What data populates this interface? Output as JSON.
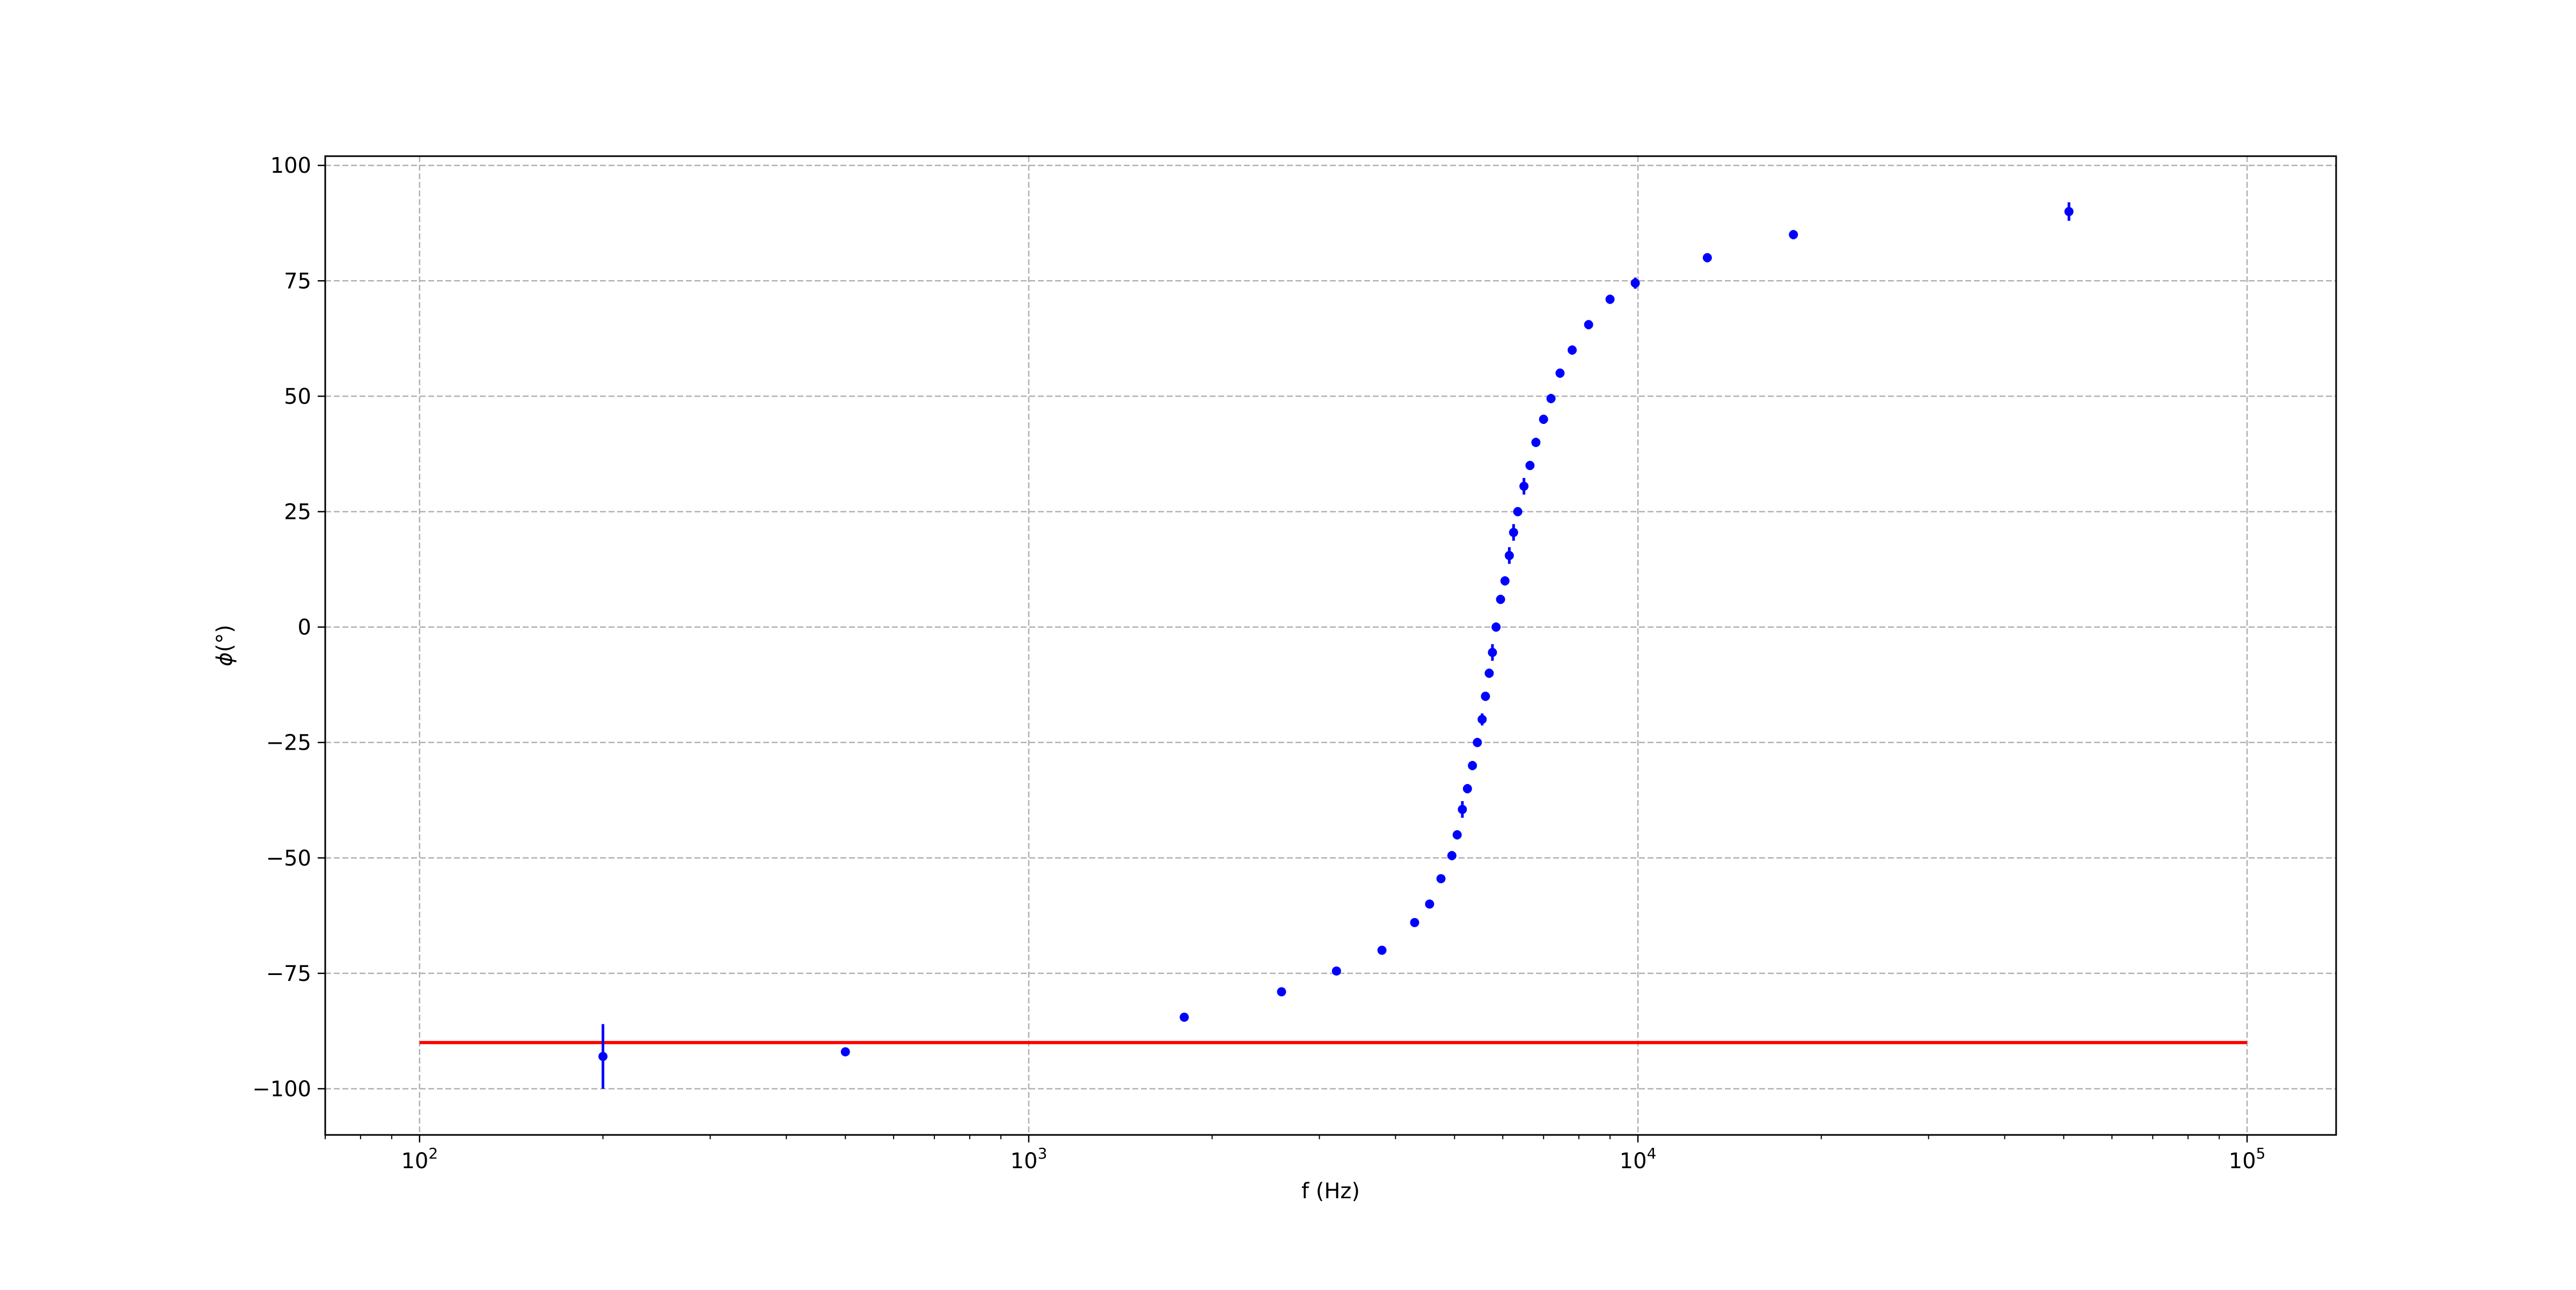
{
  "chart_data": {
    "type": "scatter",
    "title": "",
    "xlabel": "f (Hz)",
    "ylabel_base": "ϕ",
    "ylabel_suffix": "(°)",
    "xscale": "log",
    "xlim": [
      70,
      140000
    ],
    "ylim": [
      -110,
      102
    ],
    "x_ticks": [
      {
        "value": 100,
        "base": "10",
        "exp": "2"
      },
      {
        "value": 1000,
        "base": "10",
        "exp": "3"
      },
      {
        "value": 10000,
        "base": "10",
        "exp": "4"
      },
      {
        "value": 100000,
        "base": "10",
        "exp": "5"
      }
    ],
    "y_ticks": [
      {
        "value": 100,
        "label": "100"
      },
      {
        "value": 75,
        "label": "75"
      },
      {
        "value": 50,
        "label": "50"
      },
      {
        "value": 25,
        "label": "25"
      },
      {
        "value": 0,
        "label": "0"
      },
      {
        "value": -25,
        "label": "−25"
      },
      {
        "value": -50,
        "label": "−50"
      },
      {
        "value": -75,
        "label": "−75"
      },
      {
        "value": -100,
        "label": "−100"
      }
    ],
    "grid": true,
    "series": [
      {
        "kind": "errorbar",
        "color": "#0000ff",
        "points": [
          {
            "x": 200,
            "y": -93,
            "err": 7
          },
          {
            "x": 500,
            "y": -92,
            "err": 0.8
          },
          {
            "x": 1800,
            "y": -84.5,
            "err": 0.8
          },
          {
            "x": 2600,
            "y": -79,
            "err": 0.8
          },
          {
            "x": 3200,
            "y": -74.5,
            "err": 0.8
          },
          {
            "x": 3800,
            "y": -70,
            "err": 0.8
          },
          {
            "x": 4300,
            "y": -64,
            "err": 0.8
          },
          {
            "x": 4550,
            "y": -60,
            "err": 0.8
          },
          {
            "x": 4750,
            "y": -54.5,
            "err": 0.8
          },
          {
            "x": 4950,
            "y": -49.5,
            "err": 1
          },
          {
            "x": 5050,
            "y": -45,
            "err": 1
          },
          {
            "x": 5150,
            "y": -39.5,
            "err": 1.8
          },
          {
            "x": 5250,
            "y": -35,
            "err": 1
          },
          {
            "x": 5350,
            "y": -30,
            "err": 1
          },
          {
            "x": 5450,
            "y": -25,
            "err": 1
          },
          {
            "x": 5550,
            "y": -20,
            "err": 1.3
          },
          {
            "x": 5620,
            "y": -15,
            "err": 1
          },
          {
            "x": 5700,
            "y": -10,
            "err": 1
          },
          {
            "x": 5770,
            "y": -5.5,
            "err": 1.8
          },
          {
            "x": 5850,
            "y": 0,
            "err": 1
          },
          {
            "x": 5950,
            "y": 6,
            "err": 1
          },
          {
            "x": 6050,
            "y": 10,
            "err": 1
          },
          {
            "x": 6150,
            "y": 15.5,
            "err": 1.8
          },
          {
            "x": 6250,
            "y": 20.5,
            "err": 1.8
          },
          {
            "x": 6350,
            "y": 25,
            "err": 1
          },
          {
            "x": 6500,
            "y": 30.5,
            "err": 1.8
          },
          {
            "x": 6650,
            "y": 35,
            "err": 1
          },
          {
            "x": 6800,
            "y": 40,
            "err": 1
          },
          {
            "x": 7000,
            "y": 45,
            "err": 1
          },
          {
            "x": 7200,
            "y": 49.5,
            "err": 1
          },
          {
            "x": 7450,
            "y": 55,
            "err": 1
          },
          {
            "x": 7800,
            "y": 60,
            "err": 1
          },
          {
            "x": 8300,
            "y": 65.5,
            "err": 1
          },
          {
            "x": 9000,
            "y": 71,
            "err": 1
          },
          {
            "x": 9900,
            "y": 74.5,
            "err": 1.2
          },
          {
            "x": 13000,
            "y": 80,
            "err": 1
          },
          {
            "x": 18000,
            "y": 85,
            "err": 1
          },
          {
            "x": 51000,
            "y": 90,
            "err": 2
          }
        ]
      },
      {
        "kind": "line",
        "color": "#ff0000",
        "x": [
          100,
          100000
        ],
        "y": [
          -90,
          -90
        ]
      }
    ]
  }
}
